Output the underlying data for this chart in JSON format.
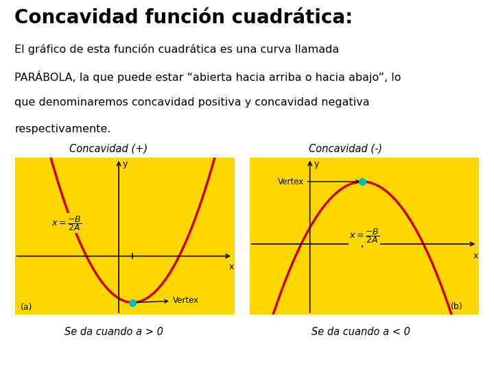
{
  "title": "Concavidad función cuadrática:",
  "title_fontsize": 20,
  "body_text_line1": "El gráfico de esta función cuadrática es una curva llamada",
  "body_text_line2": "PARÁBOLA, la que puede estar “abierta hacia arriba o hacia abajo”, lo",
  "body_text_line3": "que denominaremos concavidad positiva y concavidad negativa",
  "body_text_line4": "respectivamente.",
  "body_fontsize": 11.5,
  "label_left": "Concavidad (+)",
  "label_right": "Concavidad (-)",
  "caption_left": "Se da cuando a > 0",
  "caption_right": "Se da cuando a < 0",
  "sub_left": "(a)",
  "sub_right": "(b)",
  "bg_color": "#FFD700",
  "curve_color": "#CC0000",
  "vertex_color": "#00BFBF",
  "axis_color": "#000000",
  "bg_page": "#FFFFFF",
  "vertex_label": "Vertex",
  "bar_color": "#7A8C99",
  "ust_color": "#FFFFFF"
}
